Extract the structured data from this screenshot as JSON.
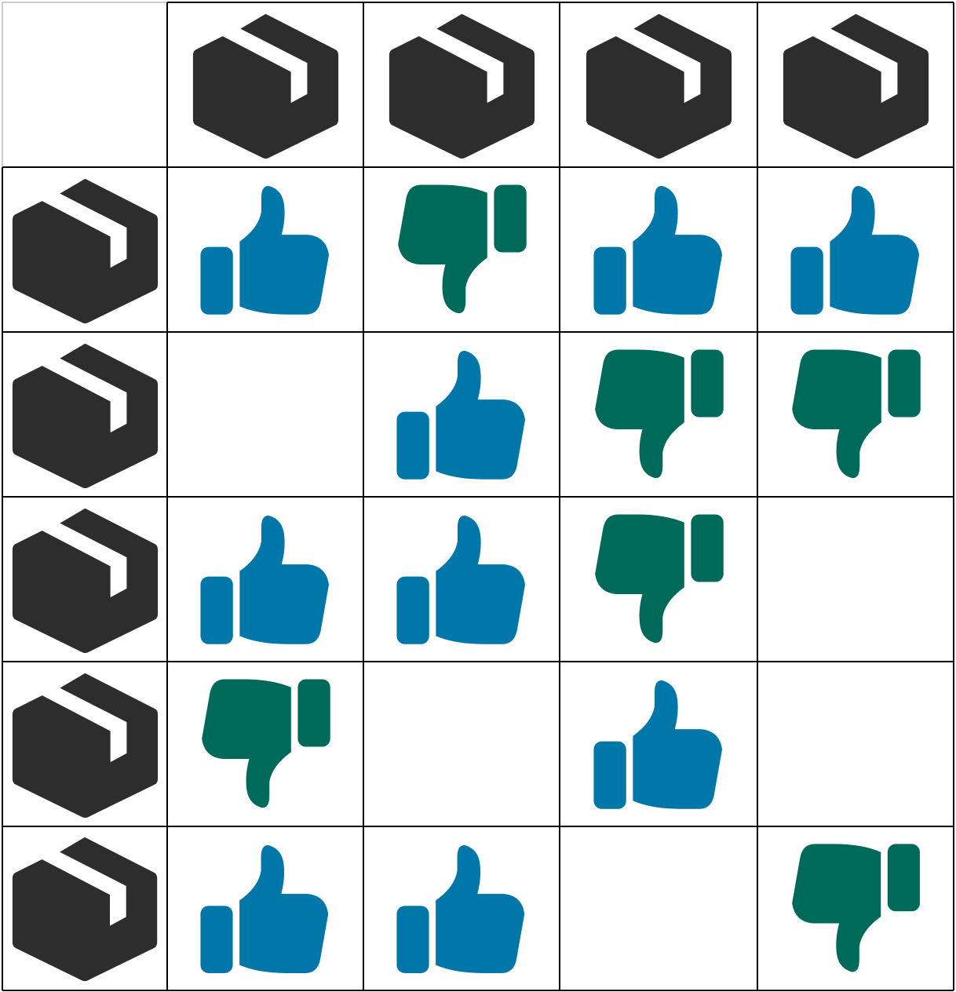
{
  "colors": {
    "box": "#2d2d2d",
    "thumbs_up": "#0077a8",
    "thumbs_down": "#006a5a",
    "grid_line": "#000000",
    "corner_line": "#cccccc",
    "background": "#ffffff"
  },
  "column_headers": [
    {
      "icon": "box-icon"
    },
    {
      "icon": "box-icon"
    },
    {
      "icon": "box-icon"
    },
    {
      "icon": "box-icon"
    }
  ],
  "rows": [
    {
      "header_icon": "box-icon",
      "cells": [
        "thumbs-up",
        "thumbs-down",
        "thumbs-up",
        "thumbs-up"
      ]
    },
    {
      "header_icon": "box-icon",
      "cells": [
        "",
        "thumbs-up",
        "thumbs-down",
        "thumbs-down"
      ]
    },
    {
      "header_icon": "box-icon",
      "cells": [
        "thumbs-up",
        "thumbs-up",
        "thumbs-down",
        ""
      ]
    },
    {
      "header_icon": "box-icon",
      "cells": [
        "thumbs-down",
        "",
        "thumbs-up",
        ""
      ]
    },
    {
      "header_icon": "box-icon",
      "cells": [
        "thumbs-up",
        "thumbs-up",
        "",
        "thumbs-down"
      ]
    }
  ]
}
